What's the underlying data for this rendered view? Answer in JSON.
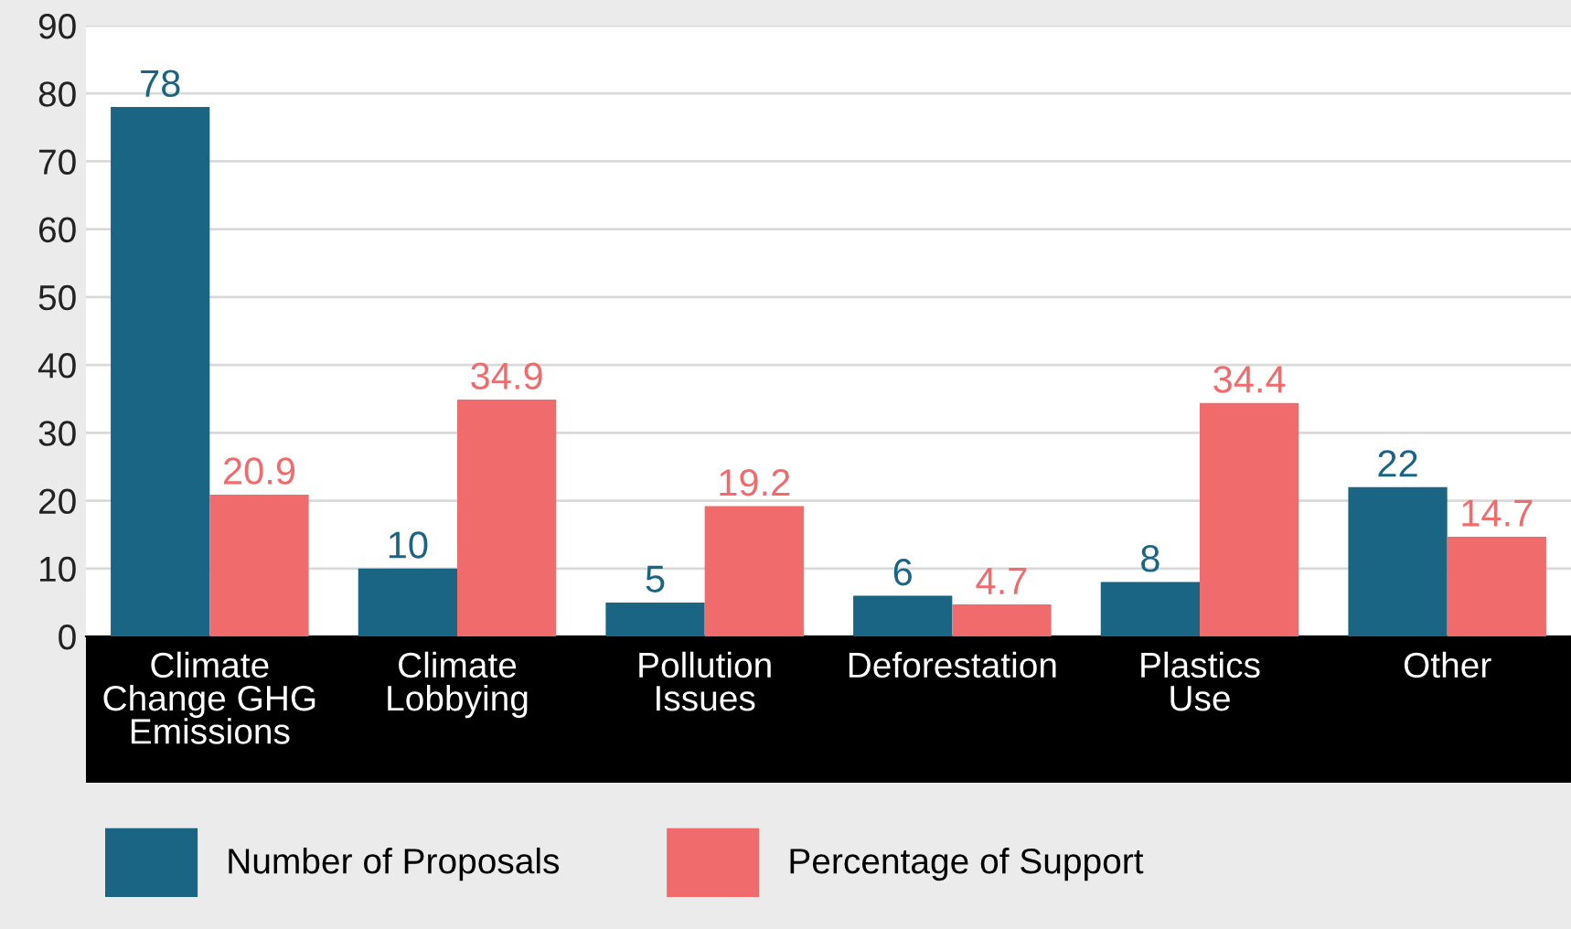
{
  "chart_data": {
    "type": "bar",
    "categories": [
      "Climate\nChange GHG\nEmissions",
      "Climate\nLobbying",
      "Pollution\nIssues",
      "Deforestation",
      "Plastics\nUse",
      "Other"
    ],
    "series": [
      {
        "name": "Number of Proposals",
        "color": "#1b6584",
        "values": [
          78,
          10,
          5,
          6,
          8,
          22
        ]
      },
      {
        "name": "Percentage of Support",
        "color": "#f06b6b",
        "values": [
          20.9,
          34.9,
          19.2,
          4.7,
          34.4,
          14.7
        ]
      }
    ],
    "ylim": [
      0,
      90
    ],
    "yticks": [
      0,
      10,
      20,
      30,
      40,
      50,
      60,
      70,
      80,
      90
    ],
    "grid": "y",
    "legend": "bottom left",
    "data_labels": true
  }
}
